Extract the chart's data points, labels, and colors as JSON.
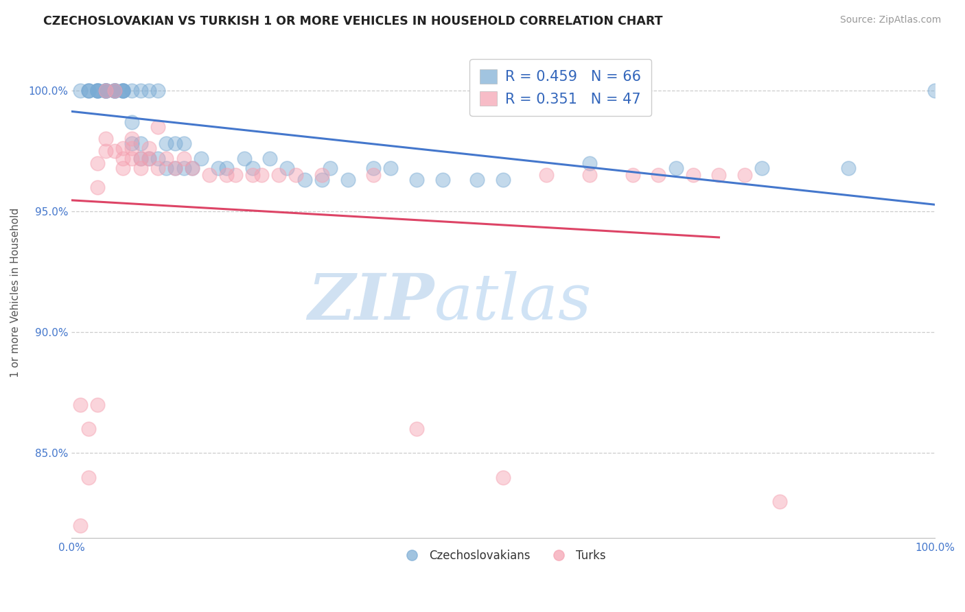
{
  "title": "CZECHOSLOVAKIAN VS TURKISH 1 OR MORE VEHICLES IN HOUSEHOLD CORRELATION CHART",
  "source": "Source: ZipAtlas.com",
  "ylabel": "1 or more Vehicles in Household",
  "xlim": [
    0.0,
    1.0
  ],
  "ylim": [
    0.815,
    1.018
  ],
  "yticks": [
    0.85,
    0.9,
    0.95,
    1.0
  ],
  "ytick_labels": [
    "85.0%",
    "90.0%",
    "95.0%",
    "100.0%"
  ],
  "xticks": [
    0.0,
    0.25,
    0.5,
    0.75,
    1.0
  ],
  "xtick_labels": [
    "0.0%",
    "",
    "",
    "",
    "100.0%"
  ],
  "blue_color": "#7AABD4",
  "pink_color": "#F5A0B0",
  "blue_line_color": "#4477CC",
  "pink_line_color": "#DD4466",
  "legend_R_blue": "R = 0.459",
  "legend_N_blue": "N = 66",
  "legend_R_pink": "R = 0.351",
  "legend_N_pink": "N = 47",
  "blue_x": [
    0.01,
    0.02,
    0.02,
    0.02,
    0.03,
    0.03,
    0.03,
    0.03,
    0.03,
    0.04,
    0.04,
    0.04,
    0.04,
    0.04,
    0.04,
    0.04,
    0.05,
    0.05,
    0.05,
    0.05,
    0.05,
    0.05,
    0.06,
    0.06,
    0.06,
    0.06,
    0.06,
    0.07,
    0.07,
    0.07,
    0.08,
    0.08,
    0.08,
    0.09,
    0.09,
    0.1,
    0.1,
    0.11,
    0.11,
    0.12,
    0.12,
    0.13,
    0.13,
    0.14,
    0.15,
    0.17,
    0.18,
    0.2,
    0.21,
    0.23,
    0.25,
    0.27,
    0.29,
    0.3,
    0.32,
    0.35,
    0.37,
    0.4,
    0.43,
    0.47,
    0.5,
    0.6,
    0.7,
    0.8,
    0.9,
    1.0
  ],
  "blue_y": [
    1.0,
    1.0,
    1.0,
    1.0,
    1.0,
    1.0,
    1.0,
    1.0,
    1.0,
    1.0,
    1.0,
    1.0,
    1.0,
    1.0,
    1.0,
    1.0,
    1.0,
    1.0,
    1.0,
    1.0,
    1.0,
    1.0,
    1.0,
    1.0,
    1.0,
    1.0,
    1.0,
    1.0,
    0.987,
    0.978,
    1.0,
    0.978,
    0.972,
    1.0,
    0.972,
    1.0,
    0.972,
    0.978,
    0.968,
    0.978,
    0.968,
    0.978,
    0.968,
    0.968,
    0.972,
    0.968,
    0.968,
    0.972,
    0.968,
    0.972,
    0.968,
    0.963,
    0.963,
    0.968,
    0.963,
    0.968,
    0.968,
    0.963,
    0.963,
    0.963,
    0.963,
    0.97,
    0.968,
    0.968,
    0.968,
    1.0
  ],
  "pink_x": [
    0.01,
    0.01,
    0.02,
    0.02,
    0.03,
    0.03,
    0.03,
    0.04,
    0.04,
    0.04,
    0.05,
    0.05,
    0.06,
    0.06,
    0.06,
    0.07,
    0.07,
    0.07,
    0.08,
    0.08,
    0.09,
    0.09,
    0.1,
    0.1,
    0.11,
    0.12,
    0.13,
    0.14,
    0.16,
    0.18,
    0.19,
    0.21,
    0.22,
    0.24,
    0.26,
    0.29,
    0.35,
    0.4,
    0.5,
    0.55,
    0.6,
    0.65,
    0.68,
    0.72,
    0.75,
    0.78,
    0.82
  ],
  "pink_y": [
    0.82,
    0.87,
    0.84,
    0.86,
    0.87,
    0.96,
    0.97,
    0.975,
    0.98,
    1.0,
    0.975,
    1.0,
    0.968,
    0.972,
    0.976,
    0.976,
    0.98,
    0.972,
    0.972,
    0.968,
    0.972,
    0.976,
    0.968,
    0.985,
    0.972,
    0.968,
    0.972,
    0.968,
    0.965,
    0.965,
    0.965,
    0.965,
    0.965,
    0.965,
    0.965,
    0.965,
    0.965,
    0.86,
    0.84,
    0.965,
    0.965,
    0.965,
    0.965,
    0.965,
    0.965,
    0.965,
    0.83
  ],
  "watermark_zip": "ZIP",
  "watermark_atlas": "atlas",
  "background_color": "#FFFFFF",
  "grid_color": "#CCCCCC"
}
